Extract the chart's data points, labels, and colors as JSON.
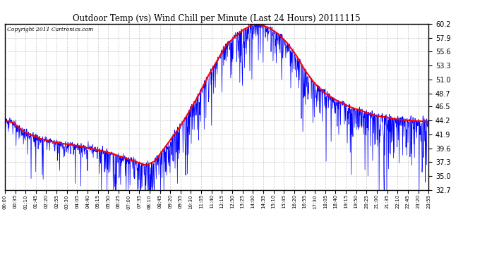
{
  "title": "Outdoor Temp (vs) Wind Chill per Minute (Last 24 Hours) 20111115",
  "copyright_text": "Copyright 2011 Cartronics.com",
  "background_color": "#ffffff",
  "plot_bg_color": "#ffffff",
  "grid_color": "#bbbbbb",
  "y_ticks": [
    32.7,
    35.0,
    37.3,
    39.6,
    41.9,
    44.2,
    46.5,
    48.7,
    51.0,
    53.3,
    55.6,
    57.9,
    60.2
  ],
  "y_min": 32.7,
  "y_max": 60.2,
  "outdoor_color": "#ff0000",
  "windchill_color": "#0000ff",
  "x_tick_labels": [
    "00:00",
    "00:35",
    "01:10",
    "01:45",
    "02:20",
    "02:55",
    "03:30",
    "04:05",
    "04:40",
    "05:15",
    "05:50",
    "06:25",
    "07:00",
    "07:35",
    "08:10",
    "08:45",
    "09:20",
    "09:55",
    "10:30",
    "11:05",
    "11:40",
    "12:15",
    "12:50",
    "13:25",
    "14:00",
    "14:35",
    "15:10",
    "15:45",
    "16:20",
    "16:55",
    "17:30",
    "18:05",
    "18:40",
    "19:15",
    "19:50",
    "20:25",
    "21:00",
    "21:35",
    "22:10",
    "22:45",
    "23:20",
    "23:55"
  ],
  "n_points": 1440,
  "outdoor_keypoints": [
    [
      0.0,
      44.2
    ],
    [
      0.5,
      43.8
    ],
    [
      1.0,
      42.5
    ],
    [
      1.5,
      41.8
    ],
    [
      2.0,
      41.2
    ],
    [
      2.5,
      40.8
    ],
    [
      3.0,
      40.5
    ],
    [
      3.5,
      40.3
    ],
    [
      4.0,
      40.1
    ],
    [
      4.5,
      39.8
    ],
    [
      5.0,
      39.5
    ],
    [
      5.5,
      39.2
    ],
    [
      6.0,
      38.8
    ],
    [
      6.5,
      38.3
    ],
    [
      7.0,
      37.8
    ],
    [
      7.5,
      37.3
    ],
    [
      8.0,
      36.8
    ],
    [
      8.5,
      37.5
    ],
    [
      9.0,
      39.5
    ],
    [
      9.5,
      41.5
    ],
    [
      10.0,
      43.5
    ],
    [
      10.5,
      46.0
    ],
    [
      11.0,
      48.5
    ],
    [
      11.5,
      51.5
    ],
    [
      12.0,
      54.0
    ],
    [
      12.5,
      56.5
    ],
    [
      13.0,
      58.0
    ],
    [
      13.5,
      59.2
    ],
    [
      14.0,
      60.0
    ],
    [
      14.2,
      60.2
    ],
    [
      14.5,
      60.0
    ],
    [
      15.0,
      59.5
    ],
    [
      15.5,
      58.5
    ],
    [
      16.0,
      57.0
    ],
    [
      16.5,
      55.0
    ],
    [
      17.0,
      52.5
    ],
    [
      17.5,
      50.5
    ],
    [
      18.0,
      49.0
    ],
    [
      18.5,
      48.0
    ],
    [
      19.0,
      47.2
    ],
    [
      19.5,
      46.5
    ],
    [
      20.0,
      46.0
    ],
    [
      20.5,
      45.5
    ],
    [
      21.0,
      45.0
    ],
    [
      21.5,
      44.8
    ],
    [
      22.0,
      44.5
    ],
    [
      22.5,
      44.3
    ],
    [
      23.0,
      44.2
    ],
    [
      23.5,
      44.1
    ],
    [
      24.0,
      44.0
    ]
  ]
}
